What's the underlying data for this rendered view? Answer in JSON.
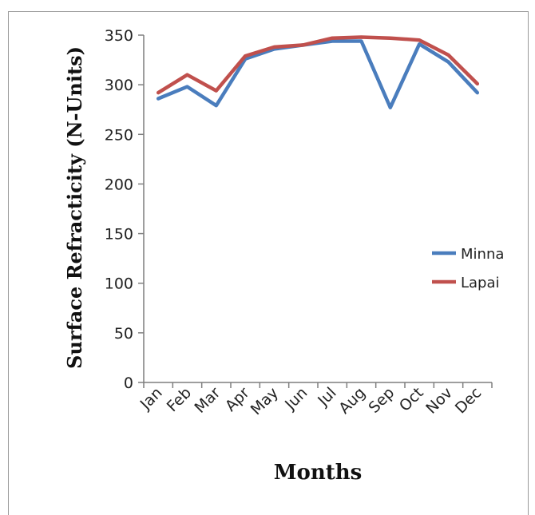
{
  "chart_data": {
    "type": "line",
    "xlabel": "Months",
    "ylabel": "Surface Refracticity (N-Units)",
    "categories": [
      "Jan",
      "Feb",
      "Mar",
      "Apr",
      "May",
      "Jun",
      "Jul",
      "Aug",
      "Sep",
      "Oct",
      "Nov",
      "Dec"
    ],
    "ylim": [
      0,
      350
    ],
    "yticks": [
      0,
      50,
      100,
      150,
      200,
      250,
      300,
      350
    ],
    "grid": false,
    "legend_position": "right",
    "series": [
      {
        "name": "Minna",
        "color": "#4a7dbd",
        "values": [
          286,
          298,
          279,
          326,
          336,
          340,
          344,
          344,
          277,
          341,
          323,
          292
        ]
      },
      {
        "name": "Lapai",
        "color": "#c0504d",
        "values": [
          292,
          310,
          294,
          329,
          338,
          340,
          347,
          348,
          347,
          345,
          330,
          301
        ]
      }
    ]
  }
}
